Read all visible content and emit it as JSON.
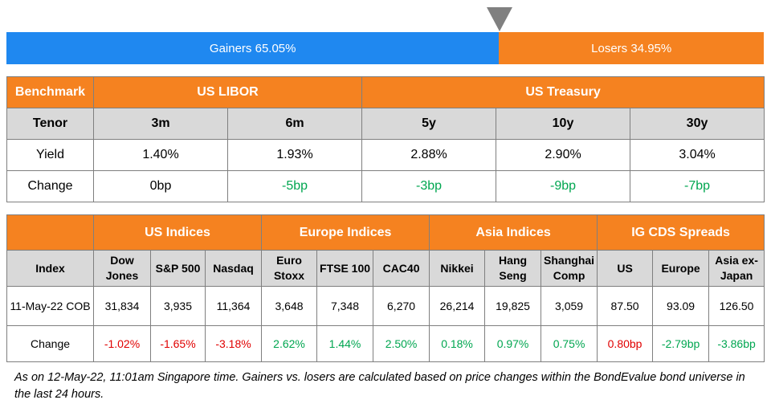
{
  "breadth": {
    "gainers_label": "Gainers 65.05%",
    "losers_label": "Losers 34.95%",
    "gainers_pct": 65.05,
    "losers_pct": 34.95,
    "gain_color": "#1f88f0",
    "lose_color": "#f58220"
  },
  "rates": {
    "benchmark_label": "Benchmark",
    "libor_label": "US LIBOR",
    "treasury_label": "US Treasury",
    "tenor_label": "Tenor",
    "yield_label": "Yield",
    "change_label": "Change",
    "cols": [
      {
        "tenor": "3m",
        "yield": "1.40%",
        "change": "0bp"
      },
      {
        "tenor": "6m",
        "yield": "1.93%",
        "change": "-5bp"
      },
      {
        "tenor": "5y",
        "yield": "2.88%",
        "change": "-3bp"
      },
      {
        "tenor": "10y",
        "yield": "2.90%",
        "change": "-9bp"
      },
      {
        "tenor": "30y",
        "yield": "3.04%",
        "change": "-7bp"
      }
    ]
  },
  "indices": {
    "groups": [
      "US Indices",
      "Europe Indices",
      "Asia Indices",
      "IG CDS Spreads"
    ],
    "index_label": "Index",
    "date_label": "11-May-22 COB",
    "change_label": "Change",
    "cols": [
      {
        "name_line1": "Dow",
        "name_line2": "Jones",
        "value": "31,834",
        "change": "-1.02%"
      },
      {
        "name_line1": "S&P 500",
        "name_line2": "",
        "value": "3,935",
        "change": "-1.65%"
      },
      {
        "name_line1": "Nasdaq",
        "name_line2": "",
        "value": "11,364",
        "change": "-3.18%"
      },
      {
        "name_line1": "Euro",
        "name_line2": "Stoxx",
        "value": "3,648",
        "change": "2.62%"
      },
      {
        "name_line1": "FTSE 100",
        "name_line2": "",
        "value": "7,348",
        "change": "1.44%"
      },
      {
        "name_line1": "CAC40",
        "name_line2": "",
        "value": "6,270",
        "change": "2.50%"
      },
      {
        "name_line1": "Nikkei",
        "name_line2": "",
        "value": "26,214",
        "change": "0.18%"
      },
      {
        "name_line1": "Hang",
        "name_line2": "Seng",
        "value": "19,825",
        "change": "0.97%"
      },
      {
        "name_line1": "Shanghai",
        "name_line2": "Comp",
        "value": "3,059",
        "change": "0.75%"
      },
      {
        "name_line1": "US",
        "name_line2": "",
        "value": "87.50",
        "change": "0.80bp"
      },
      {
        "name_line1": "Europe",
        "name_line2": "",
        "value": "93.09",
        "change": "-2.79bp"
      },
      {
        "name_line1": "Asia ex-",
        "name_line2": "Japan",
        "value": "126.50",
        "change": "-3.86bp"
      }
    ]
  },
  "footnote": "As on 12-May-22, 11:01am Singapore time. Gainers vs. losers are calculated based on price changes within the BondEvalue bond universe in the last 24 hours."
}
